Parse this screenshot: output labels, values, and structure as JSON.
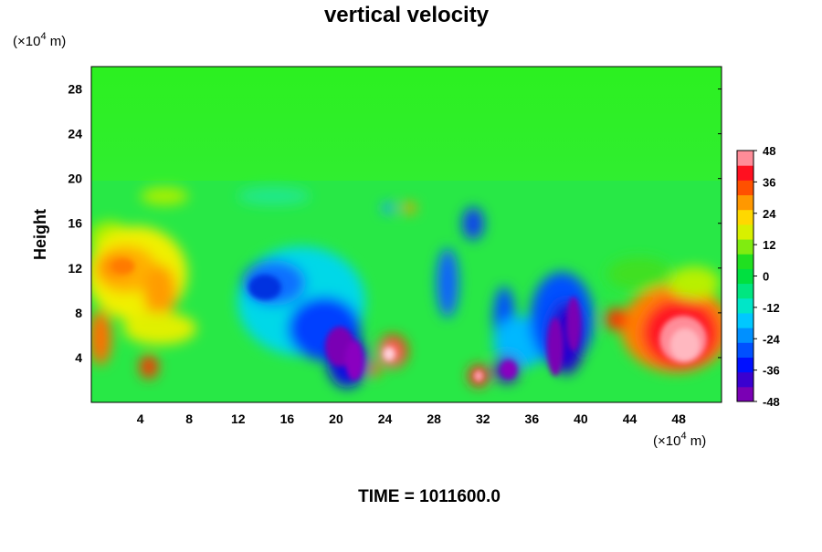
{
  "chart_data": {
    "type": "heatmap",
    "title": "vertical velocity",
    "ylabel": "Height",
    "x_unit": {
      "prefix": "(×10",
      "exp": "4",
      "suffix": " m)"
    },
    "y_unit": {
      "prefix": "(×10",
      "exp": "4",
      "suffix": " m)"
    },
    "xlim": [
      0,
      51.5
    ],
    "ylim": [
      0,
      30
    ],
    "x_ticks": [
      4,
      8,
      12,
      16,
      20,
      24,
      28,
      32,
      36,
      40,
      44,
      48
    ],
    "y_ticks": [
      4,
      8,
      12,
      16,
      20,
      24,
      28
    ],
    "colorbar": {
      "range": [
        -48,
        48
      ],
      "ticks": [
        48,
        36,
        24,
        12,
        0,
        -12,
        -24,
        -36,
        -48
      ],
      "colors": [
        "#7a00b4",
        "#3a00d0",
        "#0010ff",
        "#0050ff",
        "#0090ff",
        "#00c8ff",
        "#00e6c8",
        "#00e680",
        "#00e040",
        "#20e020",
        "#80ec10",
        "#d8f000",
        "#ffd800",
        "#ff9800",
        "#ff5000",
        "#ff1020",
        "#ff8c98"
      ]
    },
    "footer_text": "TIME = 1011600.0"
  }
}
